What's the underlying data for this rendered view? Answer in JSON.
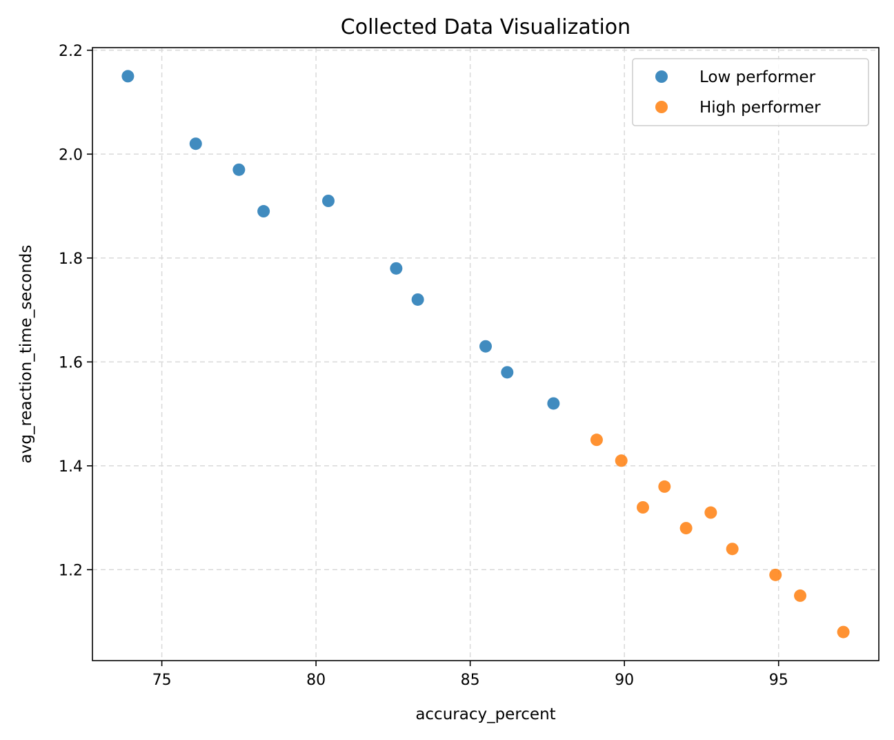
{
  "chart_data": {
    "type": "scatter",
    "title": "Collected Data Visualization",
    "xlabel": "accuracy_percent",
    "ylabel": "avg_reaction_time_seconds",
    "xlim": [
      72.75,
      98.25
    ],
    "ylim": [
      1.025,
      2.205
    ],
    "xticks": [
      75,
      80,
      85,
      90,
      95
    ],
    "yticks": [
      1.2,
      1.4,
      1.6,
      1.8,
      2.0,
      2.2
    ],
    "grid": true,
    "legend_position": "top-right",
    "series": [
      {
        "name": "Low performer",
        "color": "#1f77b4",
        "points": [
          {
            "x": 73.9,
            "y": 2.15
          },
          {
            "x": 76.1,
            "y": 2.02
          },
          {
            "x": 77.5,
            "y": 1.97
          },
          {
            "x": 78.3,
            "y": 1.89
          },
          {
            "x": 80.4,
            "y": 1.91
          },
          {
            "x": 82.6,
            "y": 1.78
          },
          {
            "x": 83.3,
            "y": 1.72
          },
          {
            "x": 85.5,
            "y": 1.63
          },
          {
            "x": 86.2,
            "y": 1.58
          },
          {
            "x": 87.7,
            "y": 1.52
          }
        ]
      },
      {
        "name": "High performer",
        "color": "#ff7f0e",
        "points": [
          {
            "x": 89.1,
            "y": 1.45
          },
          {
            "x": 89.9,
            "y": 1.41
          },
          {
            "x": 90.6,
            "y": 1.32
          },
          {
            "x": 91.3,
            "y": 1.36
          },
          {
            "x": 92.0,
            "y": 1.28
          },
          {
            "x": 92.8,
            "y": 1.31
          },
          {
            "x": 93.5,
            "y": 1.24
          },
          {
            "x": 94.9,
            "y": 1.19
          },
          {
            "x": 95.7,
            "y": 1.15
          },
          {
            "x": 97.1,
            "y": 1.08
          }
        ]
      }
    ]
  }
}
